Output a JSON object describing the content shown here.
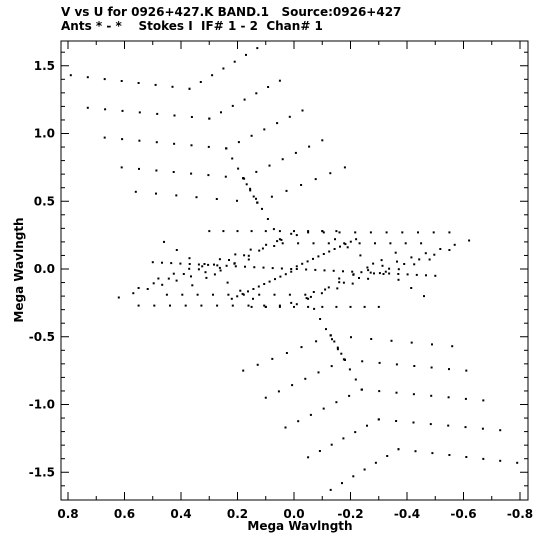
{
  "header": {
    "line1": "V vs U for 0926+427.K BAND.1   Source:0926+427",
    "line2": "Ants * - *    Stokes I  IF# 1 - 2  Chan# 1"
  },
  "chart_data": {
    "type": "scatter",
    "xlabel": "Mega Wavlngth",
    "ylabel": "Mega Wavlngth",
    "xlim": [
      0.8,
      -0.8
    ],
    "ylim": [
      -1.5,
      1.5
    ],
    "x_ticks": [
      0.8,
      0.6,
      0.4,
      0.2,
      0.0,
      -0.2,
      -0.4,
      -0.6,
      -0.8
    ],
    "x_tick_labels": [
      "0.8",
      "0.6",
      "0.4",
      "0.2",
      "0.0",
      "-0.2",
      "-0.4",
      "-0.6",
      "-0.8"
    ],
    "y_ticks": [
      1.5,
      1.0,
      0.5,
      0.0,
      -0.5,
      -1.0,
      -1.5
    ],
    "y_tick_labels": [
      "1.5",
      "1.0",
      "0.5",
      "0.0",
      "-0.5",
      "-1.0",
      "-1.5"
    ],
    "x_minor_step": 0.1,
    "y_minor_step": 0.1,
    "grid": false,
    "marker": "dot",
    "marker_color": "#000000",
    "tracks": [
      {
        "from": [
          0.79,
          1.43
        ],
        "to": [
          0.37,
          1.33
        ],
        "n": 8
      },
      {
        "from": [
          0.37,
          1.33
        ],
        "to": [
          0.13,
          1.63
        ],
        "n": 7
      },
      {
        "from": [
          0.73,
          1.19
        ],
        "to": [
          0.3,
          1.11
        ],
        "n": 8
      },
      {
        "from": [
          0.3,
          1.11
        ],
        "to": [
          0.05,
          1.39
        ],
        "n": 7
      },
      {
        "from": [
          0.67,
          0.97
        ],
        "to": [
          0.24,
          0.89
        ],
        "n": 8
      },
      {
        "from": [
          0.24,
          0.89
        ],
        "to": [
          -0.03,
          1.17
        ],
        "n": 7
      },
      {
        "from": [
          0.61,
          0.75
        ],
        "to": [
          0.18,
          0.67
        ],
        "n": 8
      },
      {
        "from": [
          0.18,
          0.67
        ],
        "to": [
          -0.1,
          0.95
        ],
        "n": 7
      },
      {
        "from": [
          0.56,
          0.57
        ],
        "to": [
          0.13,
          0.49
        ],
        "n": 7
      },
      {
        "from": [
          0.13,
          0.49
        ],
        "to": [
          -0.18,
          0.75
        ],
        "n": 7
      },
      {
        "from": [
          0.18,
          0.67
        ],
        "to": [
          0.13,
          0.49
        ],
        "n": 5
      },
      {
        "from": [
          0.05,
          0.22
        ],
        "to": [
          0.24,
          0.89
        ],
        "n": 10
      },
      {
        "from": [
          -0.79,
          -1.43
        ],
        "to": [
          -0.37,
          -1.33
        ],
        "n": 8
      },
      {
        "from": [
          -0.37,
          -1.33
        ],
        "to": [
          -0.13,
          -1.63
        ],
        "n": 7
      },
      {
        "from": [
          -0.73,
          -1.19
        ],
        "to": [
          -0.3,
          -1.11
        ],
        "n": 8
      },
      {
        "from": [
          -0.3,
          -1.11
        ],
        "to": [
          -0.05,
          -1.39
        ],
        "n": 7
      },
      {
        "from": [
          -0.67,
          -0.97
        ],
        "to": [
          -0.24,
          -0.89
        ],
        "n": 8
      },
      {
        "from": [
          -0.24,
          -0.89
        ],
        "to": [
          0.03,
          -1.17
        ],
        "n": 7
      },
      {
        "from": [
          -0.61,
          -0.75
        ],
        "to": [
          -0.18,
          -0.67
        ],
        "n": 8
      },
      {
        "from": [
          -0.18,
          -0.67
        ],
        "to": [
          0.1,
          -0.95
        ],
        "n": 7
      },
      {
        "from": [
          -0.56,
          -0.57
        ],
        "to": [
          -0.13,
          -0.49
        ],
        "n": 7
      },
      {
        "from": [
          -0.13,
          -0.49
        ],
        "to": [
          0.18,
          -0.75
        ],
        "n": 7
      },
      {
        "from": [
          -0.18,
          -0.67
        ],
        "to": [
          -0.13,
          -0.49
        ],
        "n": 5
      },
      {
        "from": [
          -0.05,
          -0.22
        ],
        "to": [
          -0.24,
          -0.89
        ],
        "n": 10
      },
      {
        "from": [
          0.5,
          0.05
        ],
        "to": [
          0.01,
          0.0
        ],
        "n": 16
      },
      {
        "from": [
          -0.5,
          -0.05
        ],
        "to": [
          -0.01,
          0.0
        ],
        "n": 16
      },
      {
        "from": [
          0.22,
          -0.22
        ],
        "to": [
          0.01,
          -0.02
        ],
        "n": 12
      },
      {
        "from": [
          -0.22,
          0.22
        ],
        "to": [
          -0.01,
          0.02
        ],
        "n": 12
      },
      {
        "from": [
          0.62,
          -0.21
        ],
        "to": [
          0.16,
          0.07
        ],
        "n": 10
      },
      {
        "from": [
          0.55,
          -0.14
        ],
        "to": [
          0.07,
          0.17
        ],
        "n": 10
      },
      {
        "from": [
          0.48,
          -0.07
        ],
        "to": [
          -0.01,
          0.25
        ],
        "n": 10
      },
      {
        "from": [
          0.55,
          -0.27
        ],
        "to": [
          0.05,
          -0.27
        ],
        "n": 10
      },
      {
        "from": [
          0.45,
          -0.19
        ],
        "to": [
          -0.04,
          -0.19
        ],
        "n": 10
      },
      {
        "from": [
          0.36,
          -0.12
        ],
        "to": [
          0.01,
          0.26
        ],
        "n": 8
      },
      {
        "from": [
          0.3,
          0.28
        ],
        "to": [
          -0.15,
          0.28
        ],
        "n": 10
      },
      {
        "from": [
          0.46,
          0.2
        ],
        "to": [
          0.1,
          -0.28
        ],
        "n": 9
      },
      {
        "from": [
          -0.62,
          0.21
        ],
        "to": [
          -0.16,
          -0.07
        ],
        "n": 10
      },
      {
        "from": [
          -0.55,
          0.14
        ],
        "to": [
          -0.07,
          -0.17
        ],
        "n": 10
      },
      {
        "from": [
          -0.48,
          0.07
        ],
        "to": [
          0.01,
          -0.25
        ],
        "n": 10
      },
      {
        "from": [
          -0.55,
          0.27
        ],
        "to": [
          -0.05,
          0.27
        ],
        "n": 10
      },
      {
        "from": [
          -0.45,
          0.19
        ],
        "to": [
          0.04,
          0.19
        ],
        "n": 10
      },
      {
        "from": [
          -0.36,
          0.12
        ],
        "to": [
          -0.01,
          -0.26
        ],
        "n": 8
      },
      {
        "from": [
          -0.3,
          -0.28
        ],
        "to": [
          0.15,
          -0.28
        ],
        "n": 10
      },
      {
        "from": [
          -0.46,
          -0.2
        ],
        "to": [
          -0.1,
          0.28
        ],
        "n": 9
      }
    ]
  }
}
